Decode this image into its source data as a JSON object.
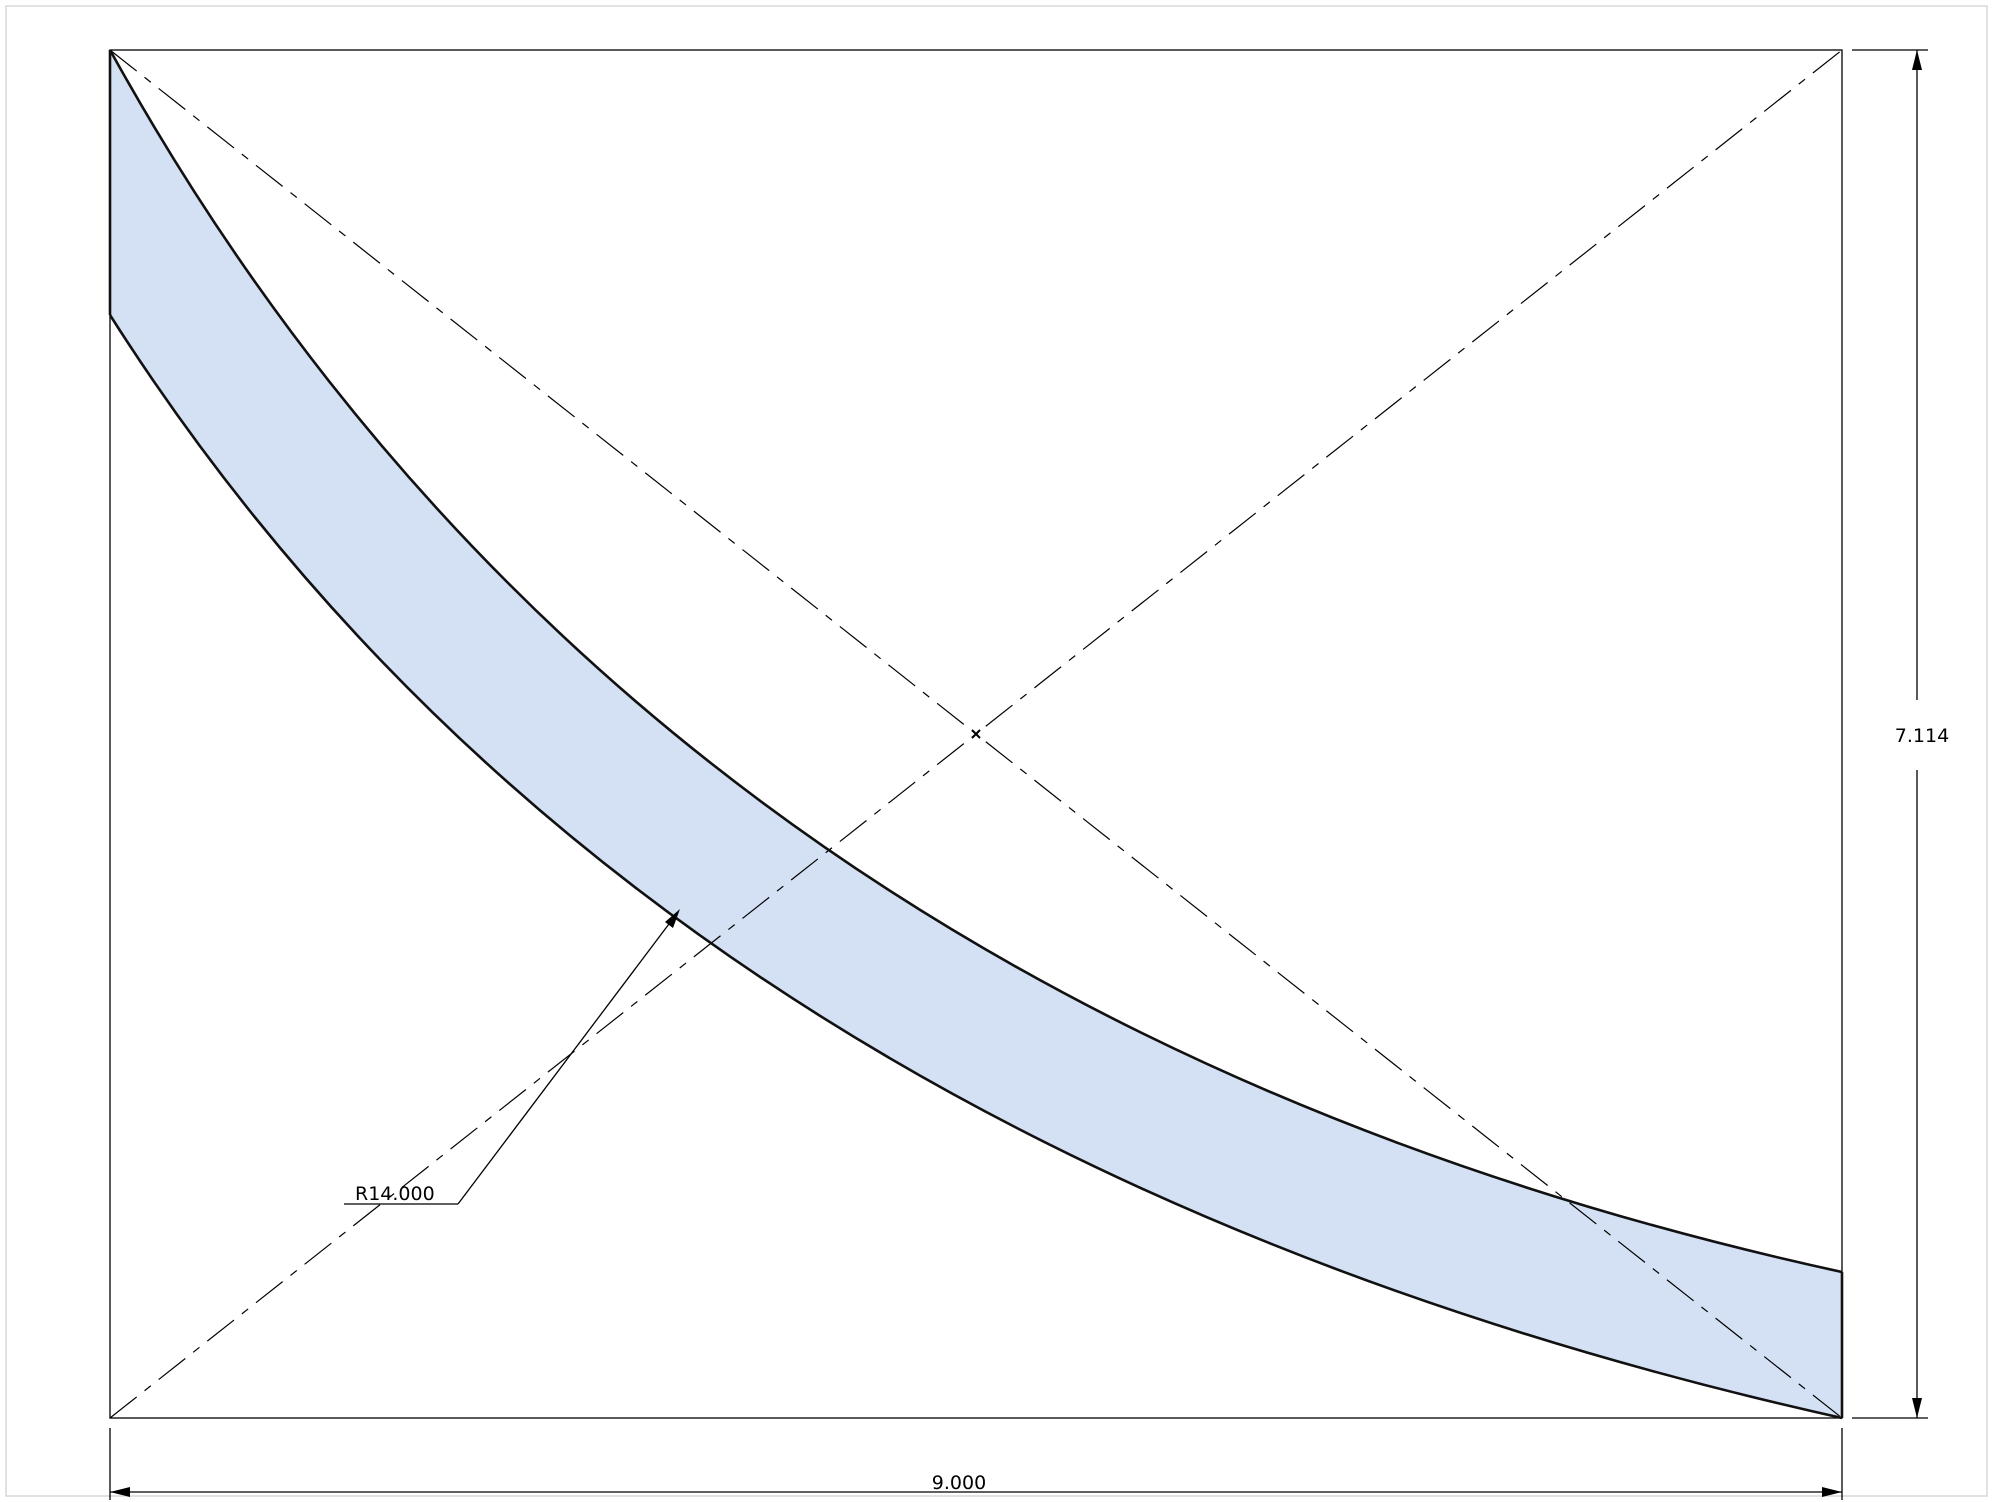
{
  "drawing": {
    "region_fill": "#d4e0f3",
    "line_color": "#000000",
    "dimensions": {
      "width_label": "9.000",
      "height_label": "7.114",
      "radius_label": "R14.000"
    }
  }
}
